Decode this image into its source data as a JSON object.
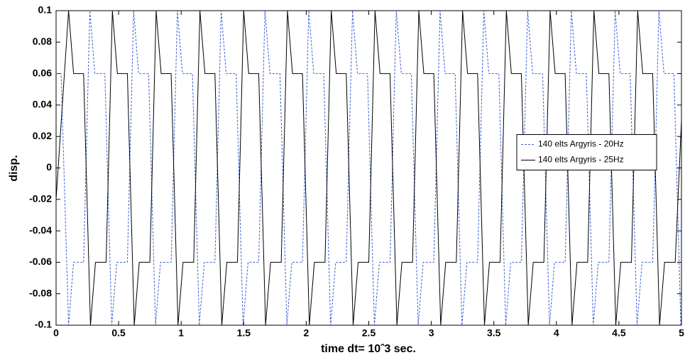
{
  "chart_data": {
    "type": "line",
    "xlabel": "time dt= 10ˆ3 sec.",
    "ylabel": "disp.",
    "xlim": [
      0,
      5
    ],
    "ylim": [
      -0.1,
      0.1
    ],
    "xticks": [
      0,
      0.5,
      1,
      1.5,
      2,
      2.5,
      3,
      3.5,
      4,
      4.5,
      5
    ],
    "yticks": [
      -0.1,
      -0.08,
      -0.06,
      -0.04,
      -0.02,
      0,
      0.02,
      0.04,
      0.06,
      0.08,
      0.1
    ],
    "legend": "right",
    "series": [
      {
        "name": "140 elts Argyris - 20Hz",
        "color": "#3b5fd9",
        "dash": true,
        "x": [
          0,
          0.04,
          0.1,
          0.14,
          0.22,
          0.27,
          0.31,
          0.39,
          0.445,
          0.485,
          0.57,
          0.62,
          0.66,
          0.74,
          0.795,
          0.835,
          0.92,
          0.97,
          1.01,
          1.09,
          1.145,
          1.185,
          1.27,
          1.32,
          1.36,
          1.44,
          1.495,
          1.535,
          1.62,
          1.67,
          1.71,
          1.79,
          1.845,
          1.885,
          1.97,
          2.02,
          2.06,
          2.14,
          2.195,
          2.235,
          2.32,
          2.37,
          2.41,
          2.49,
          2.545,
          2.585,
          2.67,
          2.72,
          2.76,
          2.84,
          2.895,
          2.935,
          3.02,
          3.07,
          3.11,
          3.19,
          3.245,
          3.285,
          3.37,
          3.42,
          3.46,
          3.54,
          3.595,
          3.635,
          3.72,
          3.77,
          3.81,
          3.89,
          3.945,
          3.985,
          4.07,
          4.12,
          4.16,
          4.24,
          4.295,
          4.335,
          4.42,
          4.47,
          4.51,
          4.59,
          4.645,
          4.685,
          4.77,
          4.82,
          4.86,
          4.94,
          4.995
        ],
        "values": [
          0.06,
          0.06,
          -0.1,
          -0.06,
          -0.06,
          0.1,
          0.06,
          0.06,
          -0.1,
          -0.06,
          -0.06,
          0.1,
          0.06,
          0.06,
          -0.1,
          -0.06,
          -0.06,
          0.1,
          0.06,
          0.06,
          -0.1,
          -0.06,
          -0.06,
          0.1,
          0.06,
          0.06,
          -0.1,
          -0.06,
          -0.06,
          0.1,
          0.06,
          0.06,
          -0.1,
          -0.06,
          -0.06,
          0.1,
          0.06,
          0.06,
          -0.1,
          -0.06,
          -0.06,
          0.1,
          0.06,
          0.06,
          -0.1,
          -0.06,
          -0.06,
          0.1,
          0.06,
          0.06,
          -0.1,
          -0.06,
          -0.06,
          0.1,
          0.06,
          0.06,
          -0.1,
          -0.06,
          -0.06,
          0.1,
          0.06,
          0.06,
          -0.1,
          -0.06,
          -0.06,
          0.1,
          0.06,
          0.06,
          -0.1,
          -0.06,
          -0.06,
          0.1,
          0.06,
          0.06,
          -0.1,
          -0.06,
          -0.06,
          0.1,
          0.06,
          0.06,
          -0.1,
          -0.06,
          -0.06,
          0.1,
          0.06,
          0.06,
          -0.1
        ]
      },
      {
        "name": "140 elts Argyris - 25Hz",
        "color": "#000000",
        "dash": false,
        "x": [
          0,
          0.1,
          0.14,
          0.22,
          0.275,
          0.315,
          0.4,
          0.45,
          0.49,
          0.57,
          0.625,
          0.665,
          0.75,
          0.8,
          0.84,
          0.92,
          0.975,
          1.015,
          1.1,
          1.15,
          1.19,
          1.27,
          1.325,
          1.365,
          1.45,
          1.5,
          1.54,
          1.62,
          1.675,
          1.715,
          1.8,
          1.85,
          1.89,
          1.97,
          2.025,
          2.065,
          2.15,
          2.2,
          2.24,
          2.32,
          2.375,
          2.415,
          2.5,
          2.55,
          2.59,
          2.67,
          2.725,
          2.765,
          2.85,
          2.9,
          2.94,
          3.02,
          3.075,
          3.115,
          3.2,
          3.25,
          3.29,
          3.37,
          3.425,
          3.465,
          3.55,
          3.6,
          3.64,
          3.72,
          3.775,
          3.815,
          3.9,
          3.95,
          3.99,
          4.07,
          4.125,
          4.165,
          4.25,
          4.3,
          4.34,
          4.42,
          4.475,
          4.515,
          4.6,
          4.65,
          4.69,
          4.77,
          4.825,
          4.865,
          4.95,
          5
        ],
        "values": [
          -0.02,
          0.1,
          0.06,
          0.06,
          -0.1,
          -0.06,
          -0.06,
          0.1,
          0.06,
          0.06,
          -0.1,
          -0.06,
          -0.06,
          0.1,
          0.06,
          0.06,
          -0.1,
          -0.06,
          -0.06,
          0.1,
          0.06,
          0.06,
          -0.1,
          -0.06,
          -0.06,
          0.1,
          0.06,
          0.06,
          -0.1,
          -0.06,
          -0.06,
          0.1,
          0.06,
          0.06,
          -0.1,
          -0.06,
          -0.06,
          0.1,
          0.06,
          0.06,
          -0.1,
          -0.06,
          -0.06,
          0.1,
          0.06,
          0.06,
          -0.1,
          -0.06,
          -0.06,
          0.1,
          0.06,
          0.06,
          -0.1,
          -0.06,
          -0.06,
          0.1,
          0.06,
          0.06,
          -0.1,
          -0.06,
          -0.06,
          0.1,
          0.06,
          0.06,
          -0.1,
          -0.06,
          -0.06,
          0.1,
          0.06,
          0.06,
          -0.1,
          -0.06,
          -0.06,
          0.1,
          0.06,
          0.06,
          -0.1,
          -0.06,
          -0.06,
          0.1,
          0.06,
          0.06,
          -0.1,
          -0.06,
          -0.06,
          0.03
        ]
      }
    ]
  }
}
